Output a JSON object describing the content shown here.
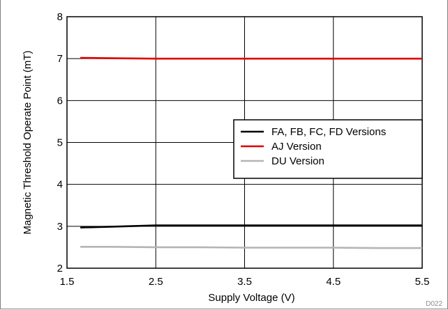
{
  "figure_id": "D022",
  "chart_data": {
    "type": "line",
    "title": "",
    "xlabel": "Supply Voltage (V)",
    "ylabel": "Magnetic Threshold Operate Point (mT)",
    "xlim": [
      1.5,
      5.5
    ],
    "ylim": [
      2,
      8
    ],
    "xticks": [
      1.5,
      2.5,
      3.5,
      4.5,
      5.5
    ],
    "xtick_labels": [
      "1.5",
      "2.5",
      "3.5",
      "4.5",
      "5.5"
    ],
    "yticks": [
      2,
      3,
      4,
      5,
      6,
      7,
      8
    ],
    "ytick_labels": [
      "2",
      "3",
      "4",
      "5",
      "6",
      "7",
      "8"
    ],
    "grid": true,
    "legend_position": "center-right",
    "series": [
      {
        "name": "FA, FB, FC, FD Versions",
        "color": "#000000",
        "x": [
          1.65,
          2.0,
          2.5,
          3.0,
          3.5,
          4.0,
          4.5,
          5.0,
          5.5
        ],
        "y": [
          2.97,
          2.99,
          3.02,
          3.02,
          3.02,
          3.02,
          3.02,
          3.02,
          3.02
        ]
      },
      {
        "name": "AJ Version",
        "color": "#e00000",
        "x": [
          1.65,
          2.0,
          2.5,
          3.0,
          3.5,
          4.0,
          4.5,
          5.0,
          5.5
        ],
        "y": [
          7.02,
          7.01,
          7.0,
          7.0,
          7.0,
          7.0,
          7.0,
          7.0,
          7.0
        ]
      },
      {
        "name": "DU Version",
        "color": "#b4b4b4",
        "x": [
          1.65,
          2.0,
          2.5,
          3.0,
          3.5,
          4.0,
          4.5,
          5.0,
          5.5
        ],
        "y": [
          2.51,
          2.51,
          2.5,
          2.5,
          2.49,
          2.49,
          2.49,
          2.48,
          2.48
        ]
      }
    ]
  }
}
